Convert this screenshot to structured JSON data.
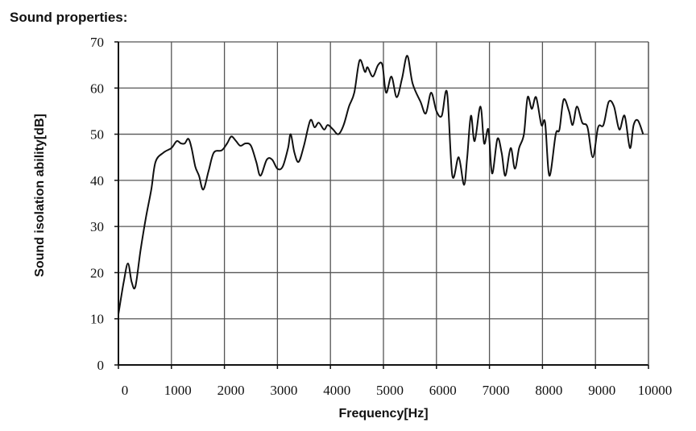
{
  "page": {
    "header": "Sound properties:"
  },
  "chart_data": {
    "type": "line",
    "title": "",
    "xlabel": "Frequency[Hz]",
    "ylabel": "Sound isolation ability[dB]",
    "xlim": [
      0,
      10000
    ],
    "ylim": [
      0,
      70
    ],
    "xticks": [
      0,
      1000,
      2000,
      3000,
      4000,
      5000,
      6000,
      7000,
      8000,
      9000,
      10000
    ],
    "yticks": [
      0,
      10,
      20,
      30,
      40,
      50,
      60,
      70
    ],
    "grid": true,
    "series": [
      {
        "points": [
          [
            0,
            11
          ],
          [
            100,
            18
          ],
          [
            180,
            22
          ],
          [
            250,
            18
          ],
          [
            320,
            17
          ],
          [
            420,
            25
          ],
          [
            520,
            32
          ],
          [
            620,
            38
          ],
          [
            700,
            44
          ],
          [
            850,
            46
          ],
          [
            1000,
            47
          ],
          [
            1100,
            48.5
          ],
          [
            1180,
            48
          ],
          [
            1250,
            48
          ],
          [
            1320,
            49
          ],
          [
            1380,
            47
          ],
          [
            1450,
            43
          ],
          [
            1520,
            41
          ],
          [
            1600,
            38
          ],
          [
            1700,
            42
          ],
          [
            1800,
            46
          ],
          [
            1950,
            46.5
          ],
          [
            2050,
            48
          ],
          [
            2130,
            49.5
          ],
          [
            2220,
            48.5
          ],
          [
            2300,
            47.5
          ],
          [
            2400,
            48
          ],
          [
            2500,
            47.5
          ],
          [
            2600,
            44
          ],
          [
            2680,
            41
          ],
          [
            2800,
            44.5
          ],
          [
            2900,
            44.5
          ],
          [
            3000,
            42.5
          ],
          [
            3100,
            43
          ],
          [
            3200,
            47
          ],
          [
            3250,
            50
          ],
          [
            3320,
            46
          ],
          [
            3400,
            44
          ],
          [
            3500,
            47.5
          ],
          [
            3620,
            53
          ],
          [
            3700,
            51.5
          ],
          [
            3780,
            52.5
          ],
          [
            3880,
            51
          ],
          [
            3950,
            52
          ],
          [
            4050,
            51
          ],
          [
            4150,
            50
          ],
          [
            4250,
            52
          ],
          [
            4350,
            56
          ],
          [
            4450,
            59
          ],
          [
            4550,
            66
          ],
          [
            4650,
            63.5
          ],
          [
            4700,
            64.5
          ],
          [
            4800,
            62.5
          ],
          [
            4900,
            65
          ],
          [
            4980,
            65
          ],
          [
            5050,
            59
          ],
          [
            5150,
            62.5
          ],
          [
            5250,
            58
          ],
          [
            5350,
            62
          ],
          [
            5450,
            67
          ],
          [
            5550,
            61
          ],
          [
            5700,
            57
          ],
          [
            5800,
            54.5
          ],
          [
            5900,
            59
          ],
          [
            6000,
            55
          ],
          [
            6100,
            54
          ],
          [
            6200,
            59
          ],
          [
            6300,
            41
          ],
          [
            6420,
            45
          ],
          [
            6520,
            39
          ],
          [
            6580,
            45
          ],
          [
            6650,
            54
          ],
          [
            6720,
            48.5
          ],
          [
            6830,
            56
          ],
          [
            6900,
            48
          ],
          [
            6980,
            51
          ],
          [
            7050,
            41.5
          ],
          [
            7150,
            49
          ],
          [
            7230,
            46
          ],
          [
            7300,
            41
          ],
          [
            7400,
            47
          ],
          [
            7480,
            42.5
          ],
          [
            7560,
            47
          ],
          [
            7650,
            50
          ],
          [
            7720,
            58
          ],
          [
            7800,
            55.5
          ],
          [
            7880,
            58
          ],
          [
            7980,
            52
          ],
          [
            8050,
            52.5
          ],
          [
            8130,
            41
          ],
          [
            8250,
            50
          ],
          [
            8320,
            51
          ],
          [
            8400,
            57.5
          ],
          [
            8500,
            55
          ],
          [
            8570,
            52
          ],
          [
            8650,
            56
          ],
          [
            8750,
            52.5
          ],
          [
            8850,
            51.5
          ],
          [
            8950,
            45
          ],
          [
            9050,
            51.5
          ],
          [
            9150,
            52
          ],
          [
            9250,
            57
          ],
          [
            9350,
            56
          ],
          [
            9450,
            51
          ],
          [
            9550,
            54
          ],
          [
            9650,
            47
          ],
          [
            9720,
            52
          ],
          [
            9800,
            53
          ],
          [
            9900,
            50
          ]
        ]
      }
    ]
  }
}
